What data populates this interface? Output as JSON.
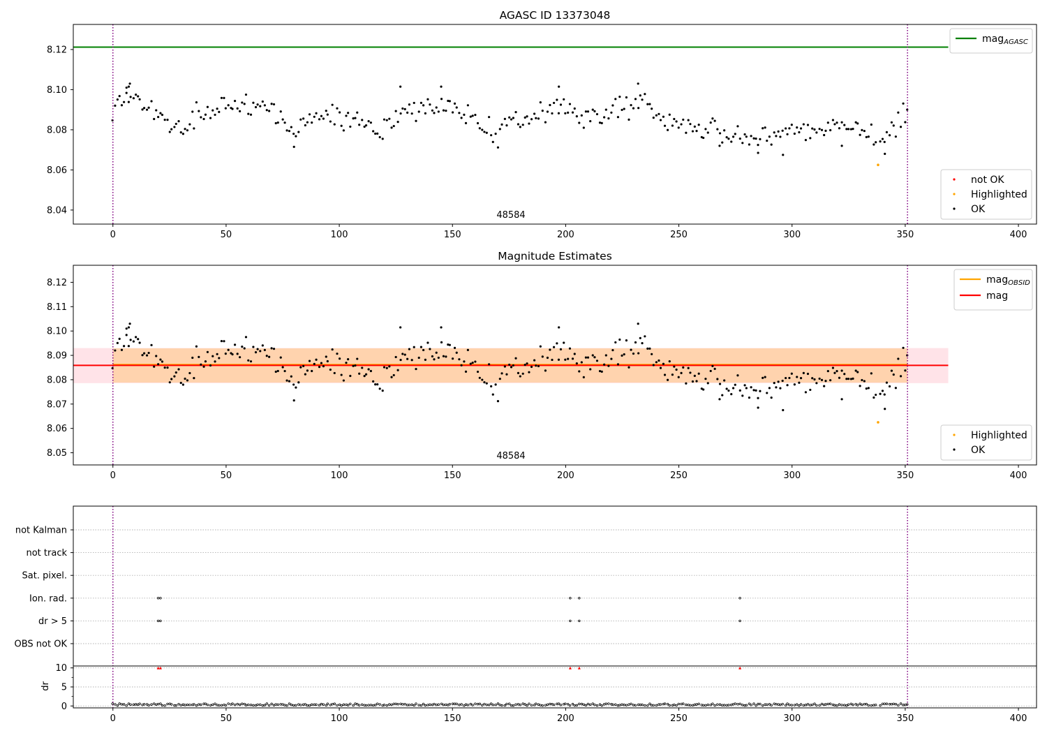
{
  "chart_data": [
    {
      "type": "scatter",
      "title": "AGASC ID 13373048",
      "obsid_label": "48584",
      "xlim": [
        -17.5,
        408
      ],
      "ylim": [
        8.033,
        8.1325
      ],
      "xticks": [
        0,
        50,
        100,
        150,
        200,
        250,
        300,
        350,
        400
      ],
      "yticks": [
        8.04,
        8.06,
        8.08,
        8.1,
        8.12
      ],
      "ytick_labels": [
        "8.04",
        "8.06",
        "8.08",
        "8.10",
        "8.12"
      ],
      "obs_bounds": [
        0,
        351
      ],
      "lines": [
        {
          "name_base": "mag",
          "name_sub": "AGASC",
          "y": 8.1212,
          "x_range": [
            -17.5,
            369
          ],
          "color": "#008000"
        }
      ],
      "legend_lines_position": "top-right",
      "legend_points": [
        {
          "name": "not OK",
          "color": "#ff0000"
        },
        {
          "name": "Highlighted",
          "color": "#ffa500"
        },
        {
          "name": "OK",
          "color": "#000000"
        }
      ],
      "legend_points_position": "bottom-right",
      "highlighted": [
        {
          "x": 338,
          "y": 8.0625
        }
      ],
      "colors": {
        "ok": "#000000",
        "highlighted": "#ffa500",
        "not_ok": "#ff0000",
        "bound": "#800080"
      }
    },
    {
      "type": "scatter",
      "title": "Magnitude Estimates",
      "obsid_label": "48584",
      "xlim": [
        -17.5,
        408
      ],
      "ylim": [
        8.045,
        8.127
      ],
      "xticks": [
        0,
        50,
        100,
        150,
        200,
        250,
        300,
        350,
        400
      ],
      "yticks": [
        8.05,
        8.06,
        8.07,
        8.08,
        8.09,
        8.1,
        8.11,
        8.12
      ],
      "ytick_labels": [
        "8.05",
        "8.06",
        "8.07",
        "8.08",
        "8.09",
        "8.10",
        "8.11",
        "8.12"
      ],
      "obs_bounds": [
        0,
        351
      ],
      "bands": [
        {
          "y_range": [
            8.0786,
            8.093
          ],
          "x_range": [
            -17.5,
            369
          ],
          "color": "#ffc0cb",
          "opacity": 0.45
        },
        {
          "y_range": [
            8.0788,
            8.0929
          ],
          "x_range": [
            0,
            351
          ],
          "color": "#ffa500",
          "opacity": 0.25
        }
      ],
      "lines": [
        {
          "name_base": "mag",
          "name_sub": "OBSID",
          "y": 8.0862,
          "x_range": [
            0,
            351
          ],
          "color": "#ffa500"
        },
        {
          "name_base": "mag",
          "name_sub": "",
          "y": 8.0859,
          "x_range": [
            -17.5,
            369
          ],
          "color": "#ff0000"
        }
      ],
      "legend_lines_position": "top-right",
      "legend_points": [
        {
          "name": "Highlighted",
          "color": "#ffa500"
        },
        {
          "name": "OK",
          "color": "#000000"
        }
      ],
      "legend_points_position": "bottom-right",
      "highlighted": [
        {
          "x": 338,
          "y": 8.0625
        }
      ],
      "colors": {
        "ok": "#000000",
        "highlighted": "#ffa500",
        "bound": "#800080"
      }
    },
    {
      "type": "scatter",
      "title": "",
      "xlim": [
        -17.5,
        408
      ],
      "categories": [
        "OBS not OK",
        "dr > 5",
        "Ion. rad.",
        "Sat. pixel.",
        "not track",
        "not Kalman"
      ],
      "flags": {
        "dr > 5": [
          20,
          21,
          202,
          206,
          277
        ],
        "Ion. rad.": [
          20,
          21,
          202,
          206,
          277
        ]
      },
      "obs_bounds": [
        0,
        351
      ],
      "colors": {
        "flag": "#000000",
        "bound": "#800080",
        "grid": "#b0b0b0"
      }
    },
    {
      "type": "scatter",
      "title": "",
      "xlabel": "",
      "ylabel": "dr",
      "xlim": [
        -17.5,
        408
      ],
      "ylim": [
        -0.5,
        10.5
      ],
      "xticks": [
        0,
        50,
        100,
        150,
        200,
        250,
        300,
        350,
        400
      ],
      "yticks": [
        0,
        5,
        10
      ],
      "clipped_points": [
        {
          "x": 20,
          "y": 10
        },
        {
          "x": 21,
          "y": 10
        },
        {
          "x": 202,
          "y": 10
        },
        {
          "x": 206,
          "y": 10
        },
        {
          "x": 277,
          "y": 10
        }
      ],
      "obs_bounds": [
        0,
        351
      ],
      "colors": {
        "ok": "#000000",
        "clipped": "#ff0000",
        "bound": "#800080",
        "grid": "#b0b0b0"
      }
    }
  ]
}
